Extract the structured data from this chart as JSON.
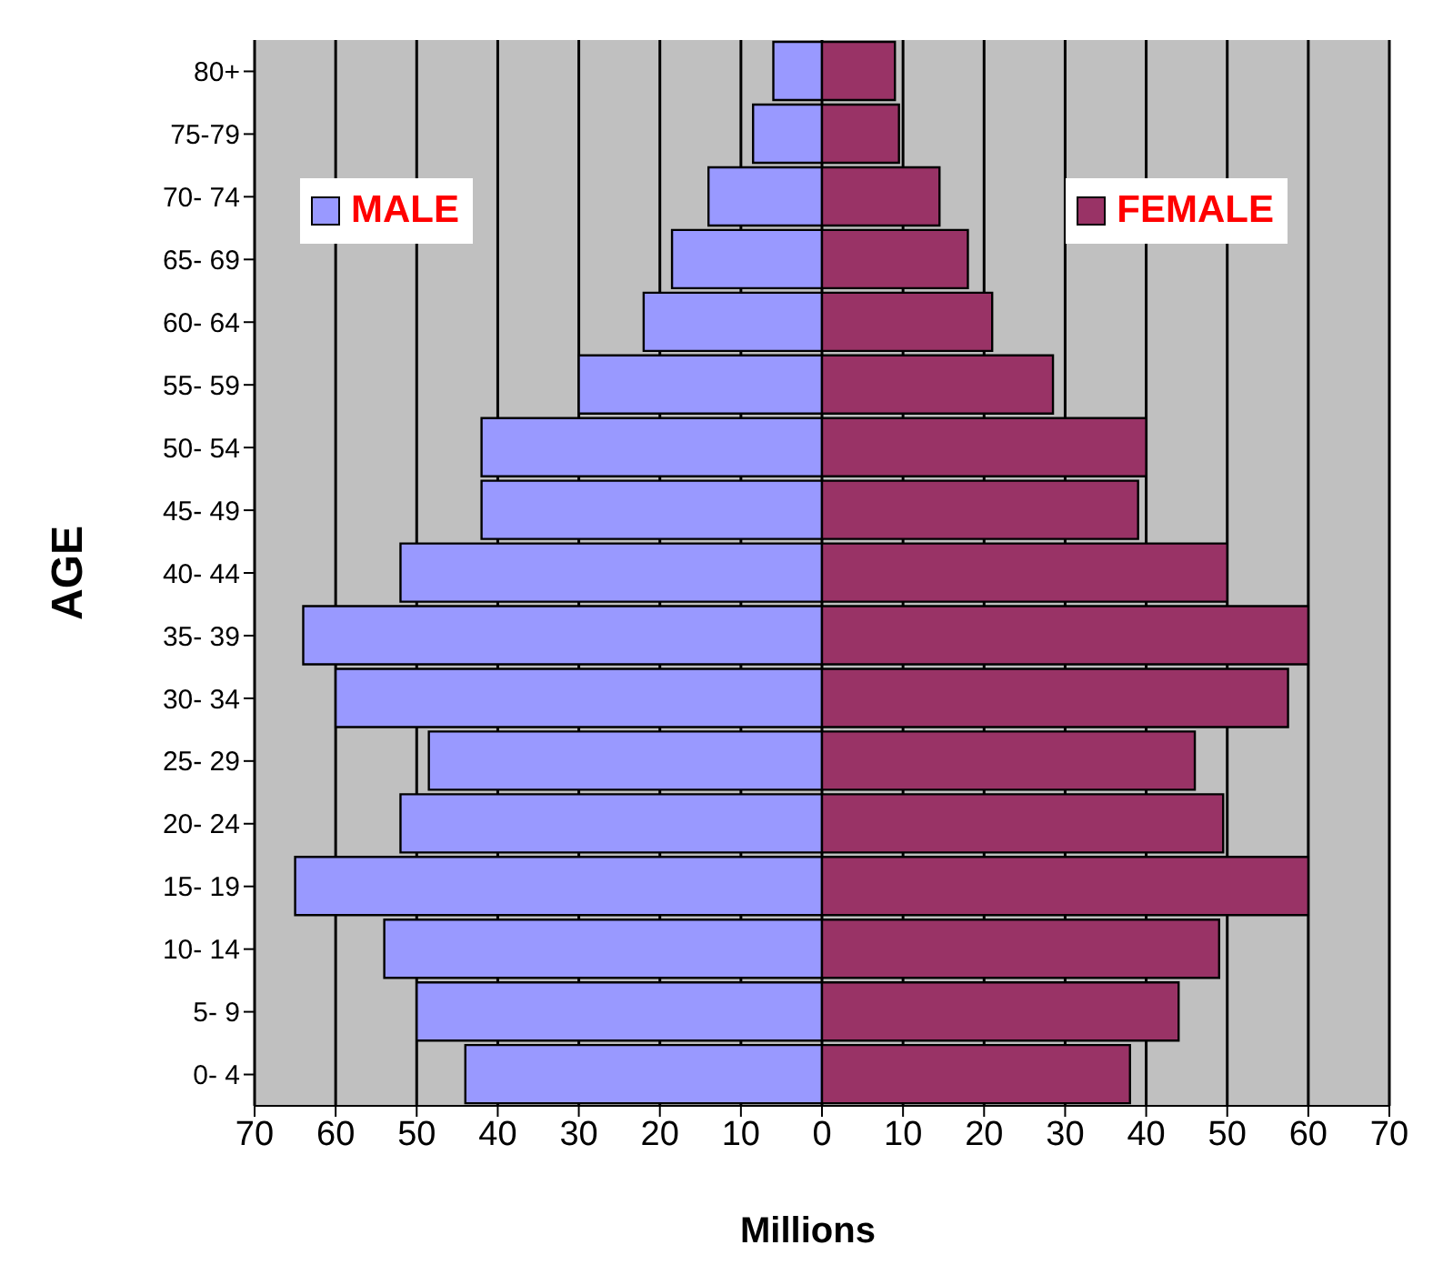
{
  "chart_data": {
    "type": "bar",
    "orientation": "horizontal",
    "stacked": true,
    "xlabel": "Millions",
    "ylabel": "AGE",
    "categories": [
      "80+",
      "75-79",
      "70- 74",
      "65- 69",
      "60- 64",
      "55- 59",
      "50- 54",
      "45- 49",
      "40- 44",
      "35- 39",
      "30- 34",
      "25- 29",
      "20- 24",
      "15- 19",
      "10- 14",
      "5- 9",
      "0- 4"
    ],
    "series": [
      {
        "name": "MALE",
        "color": "#9999ff",
        "values": [
          -6,
          -8.5,
          -14,
          -18.5,
          -22,
          -30,
          -42,
          -42,
          -52,
          -64,
          -60,
          -48.5,
          -52,
          -65,
          -54,
          -50,
          -44
        ]
      },
      {
        "name": "FEMALE",
        "color": "#993366",
        "values": [
          9,
          9.5,
          14.5,
          18,
          21,
          28.5,
          40,
          39,
          50,
          60,
          57.5,
          46,
          49.5,
          60,
          49,
          44,
          38
        ]
      }
    ],
    "xlim": [
      -70,
      70
    ],
    "xticks": [
      {
        "value": -70,
        "label": "70"
      },
      {
        "value": -60,
        "label": "60"
      },
      {
        "value": -50,
        "label": "50"
      },
      {
        "value": -40,
        "label": "40"
      },
      {
        "value": -30,
        "label": "30"
      },
      {
        "value": -20,
        "label": "20"
      },
      {
        "value": -10,
        "label": "10"
      },
      0,
      10,
      20,
      30,
      40,
      50,
      60,
      70
    ],
    "grid": "x",
    "legend": "top"
  }
}
